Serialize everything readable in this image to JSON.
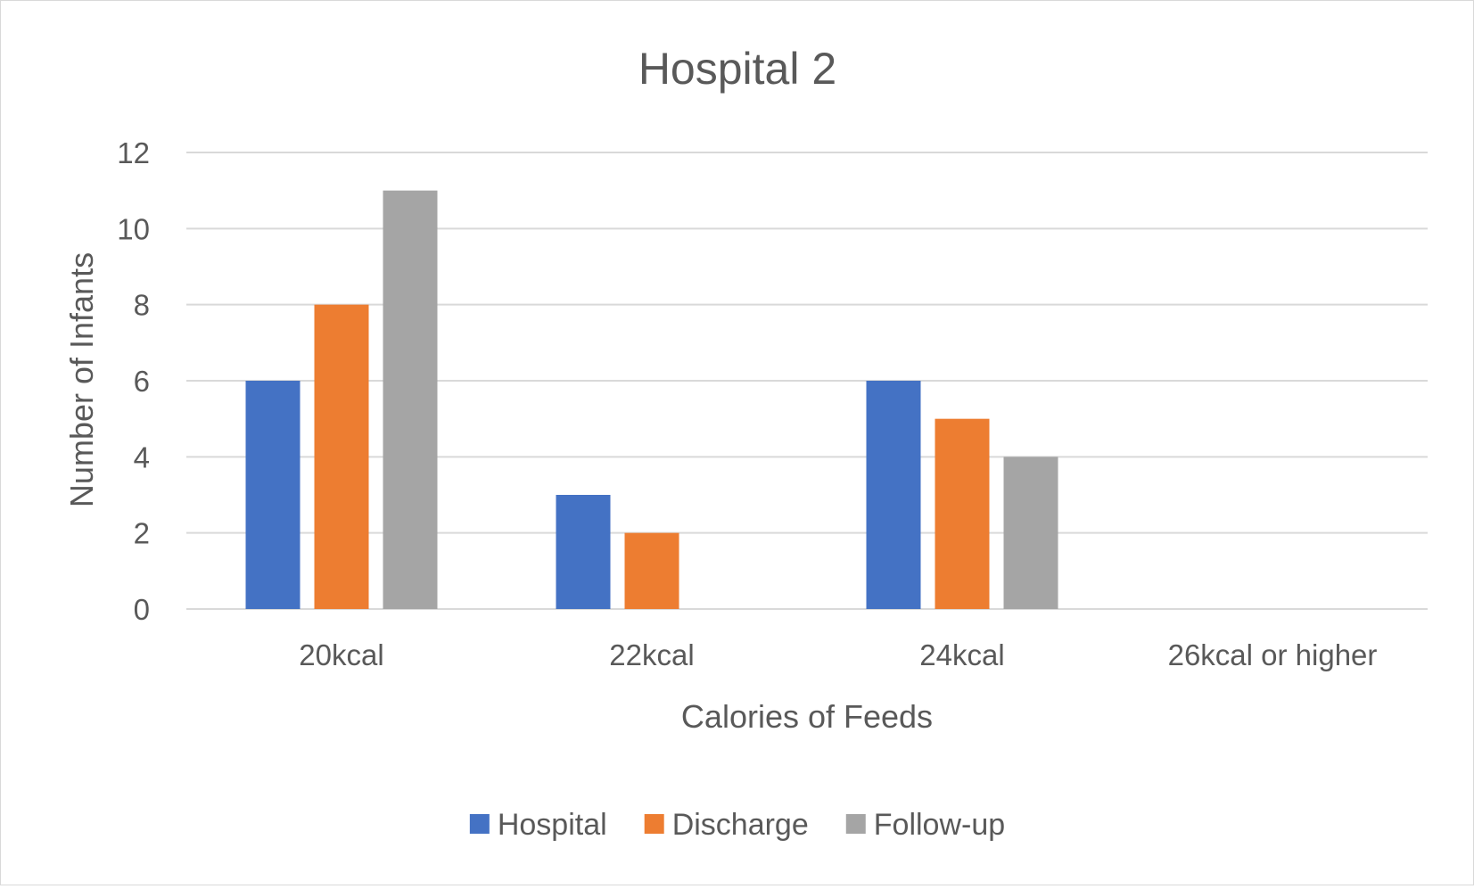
{
  "chart_data": {
    "type": "bar",
    "title": "Hospital 2",
    "xlabel": "Calories of Feeds",
    "ylabel": "Number of Infants",
    "categories": [
      "20kcal",
      "22kcal",
      "24kcal",
      "26kcal or higher"
    ],
    "ylim": [
      0,
      12
    ],
    "yticks": [
      0,
      2,
      4,
      6,
      8,
      10,
      12
    ],
    "grid": true,
    "legend_position": "bottom",
    "series": [
      {
        "name": "Hospital",
        "color": "#4472c4",
        "values": [
          6,
          3,
          6,
          0
        ]
      },
      {
        "name": "Discharge",
        "color": "#ed7d31",
        "values": [
          8,
          2,
          5,
          0
        ]
      },
      {
        "name": "Follow-up",
        "color": "#a5a5a5",
        "values": [
          11,
          0,
          4,
          0
        ]
      }
    ]
  }
}
